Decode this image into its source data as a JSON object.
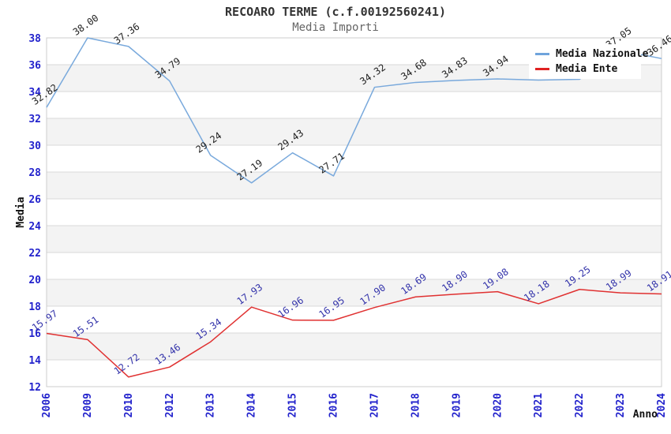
{
  "header": {
    "title": "RECOARO TERME (c.f.00192560241)",
    "subtitle": "Media Importi"
  },
  "legend": {
    "items": [
      {
        "label": "Media Nazionale",
        "color": "#6fa4dc"
      },
      {
        "label": "Media Ente",
        "color": "#e02222"
      }
    ]
  },
  "chart_data": {
    "type": "line",
    "title": "RECOARO TERME (c.f.00192560241)",
    "subtitle": "Media Importi",
    "xlabel": "Anno",
    "ylabel": "Media",
    "ylim": [
      12,
      38
    ],
    "ytick_step": 2,
    "grid": "horizontal-bands",
    "legend_position": "top-right",
    "axis_tick_color": "#2222cc",
    "band_color": "#f3f3f3",
    "gridline_color": "#d9d9d9",
    "border_color": "#cccccc",
    "categories": [
      "2006",
      "2009",
      "2010",
      "2012",
      "2013",
      "2014",
      "2015",
      "2016",
      "2017",
      "2018",
      "2019",
      "2020",
      "2021",
      "2022",
      "2023",
      "2024"
    ],
    "series": [
      {
        "name": "Media Nazionale",
        "color": "#79a9dc",
        "label_color": "#222222",
        "values": [
          32.82,
          38.0,
          37.36,
          34.79,
          29.24,
          27.19,
          29.43,
          27.71,
          34.32,
          34.68,
          34.83,
          34.94,
          34.85,
          34.91,
          37.05,
          36.46
        ],
        "labels": [
          "32.82",
          "38.00",
          "37.36",
          "34.79",
          "29.24",
          "27.19",
          "29.43",
          "27.71",
          "34.32",
          "34.68",
          "34.83",
          "34.94",
          "",
          "",
          "37.05",
          "36.46"
        ]
      },
      {
        "name": "Media Ente",
        "color": "#e03131",
        "label_color": "#3333aa",
        "values": [
          15.97,
          15.51,
          12.72,
          13.46,
          15.34,
          17.93,
          16.96,
          16.95,
          17.9,
          18.69,
          18.9,
          19.08,
          18.18,
          19.25,
          18.99,
          18.91
        ],
        "labels": [
          "15.97",
          "15.51",
          "12.72",
          "13.46",
          "15.34",
          "17.93",
          "16.96",
          "16.95",
          "17.90",
          "18.69",
          "18.90",
          "19.08",
          "18.18",
          "19.25",
          "18.99",
          "18.91"
        ]
      }
    ]
  }
}
